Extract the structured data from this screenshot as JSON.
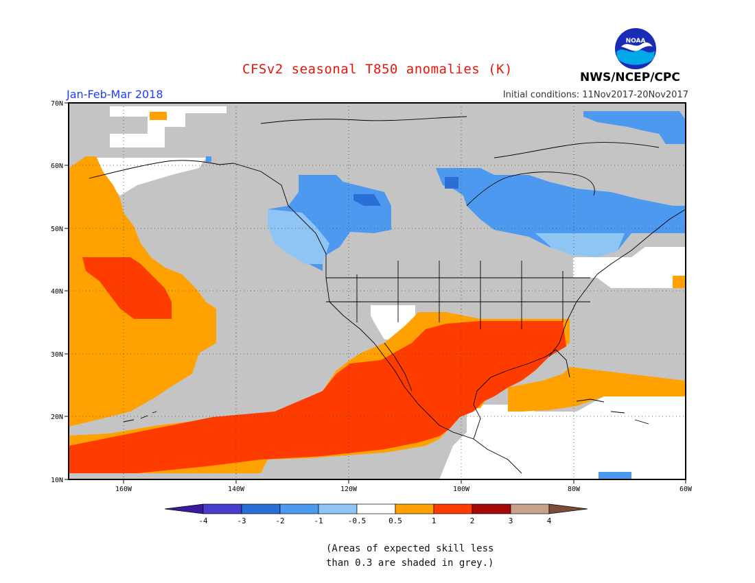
{
  "title": "CFSv2 seasonal T850 anomalies (K)",
  "agency": "NWS/NCEP/CPC",
  "logo_text": "NOAA",
  "period": "Jan-Feb-Mar 2018",
  "initial_conditions": "Initial conditions: 11Nov2017-20Nov2017",
  "footnote": [
    "(Areas of expected skill less",
    "than 0.3 are shaded in grey.)"
  ],
  "map": {
    "lon_labels": [
      "160W",
      "140W",
      "120W",
      "100W",
      "80W",
      "60W"
    ],
    "lat_labels": [
      "70N",
      "60N",
      "50N",
      "40N",
      "30N",
      "20N",
      "10N"
    ]
  },
  "legend": {
    "labels": [
      "-4",
      "-3",
      "-2",
      "-1",
      "-0.5",
      "0.5",
      "1",
      "2",
      "3",
      "4"
    ],
    "colors": [
      "#3b1a9e",
      "#4a3ccc",
      "#2b6fd6",
      "#4d99f0",
      "#8ec5f5",
      "#ffffff",
      "#ffa100",
      "#ff3c00",
      "#a50a0a",
      "#c9a08c",
      "#7b4d3a"
    ]
  },
  "colors": {
    "grey": "#c4c4c4",
    "light_blue": "#8ec5f5",
    "blue": "#4d99f0",
    "dark_blue": "#2b6fd6",
    "orange": "#ffa100",
    "red": "#ff3c00",
    "title_red": "#e8140a",
    "period_blue": "#1e3cff"
  }
}
